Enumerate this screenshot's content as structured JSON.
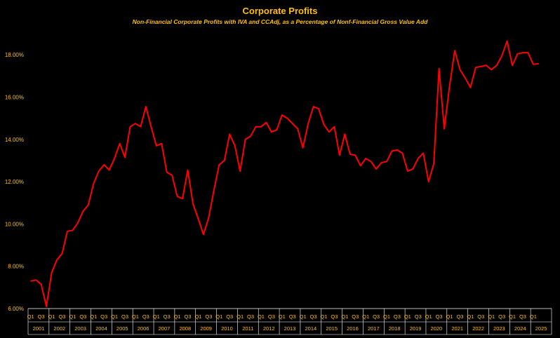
{
  "chart_data": {
    "type": "line",
    "title": "Corporate Profits",
    "subtitle": "Non-Financial Corporate Profits with IVA and CCAdj, as a Percentage of Nonf-Financial Gross Value Add",
    "xlabel": "",
    "ylabel": "",
    "ylim": [
      6,
      19.2
    ],
    "y_ticks": [
      "6.00%",
      "8.00%",
      "10.00%",
      "12.00%",
      "14.00%",
      "16.00%",
      "18.00%"
    ],
    "y_tick_values": [
      6,
      8,
      10,
      12,
      14,
      16,
      18
    ],
    "grid": false,
    "legend": "none",
    "colors": {
      "line": "#FF0000",
      "text": "#FFC000",
      "background": "#000000"
    },
    "quarter_labels": [
      "Q1",
      "Q3"
    ],
    "years": [
      "2001",
      "2002",
      "2003",
      "2004",
      "2005",
      "2006",
      "2007",
      "2008",
      "2009",
      "2010",
      "2011",
      "2012",
      "2013",
      "2014",
      "2015",
      "2016",
      "2017",
      "2018",
      "2019",
      "2020",
      "2021",
      "2022",
      "2023",
      "2024",
      "2025"
    ],
    "x_start": "2001 Q1",
    "x_end": "2025 Q2",
    "series": [
      {
        "values": [
          7.3,
          7.35,
          7.15,
          6.1,
          7.7,
          8.3,
          8.6,
          9.65,
          9.7,
          10.05,
          10.6,
          10.9,
          11.9,
          12.5,
          12.8,
          12.55,
          13.1,
          13.8,
          13.15,
          14.6,
          14.75,
          14.6,
          15.55,
          14.6,
          13.7,
          13.8,
          12.45,
          12.3,
          11.3,
          11.2,
          12.55,
          10.95,
          10.25,
          9.5,
          10.3,
          11.6,
          12.8,
          13.0,
          14.25,
          13.7,
          12.5,
          14.0,
          14.15,
          14.6,
          14.6,
          14.8,
          14.35,
          14.45,
          15.15,
          15.0,
          14.75,
          14.5,
          13.6,
          14.75,
          15.55,
          15.45,
          14.7,
          14.35,
          14.6,
          13.25,
          14.25,
          13.3,
          13.25,
          12.75,
          13.1,
          12.95,
          12.6,
          12.9,
          12.95,
          13.45,
          13.5,
          13.35,
          12.5,
          12.6,
          13.1,
          13.35,
          12.0,
          12.85,
          17.35,
          14.5,
          16.5,
          18.2,
          17.3,
          16.9,
          16.45,
          17.4,
          17.45,
          17.5,
          17.3,
          17.5,
          17.95,
          18.65,
          17.5,
          18.05,
          18.1,
          18.1,
          17.55,
          17.58
        ]
      }
    ]
  }
}
